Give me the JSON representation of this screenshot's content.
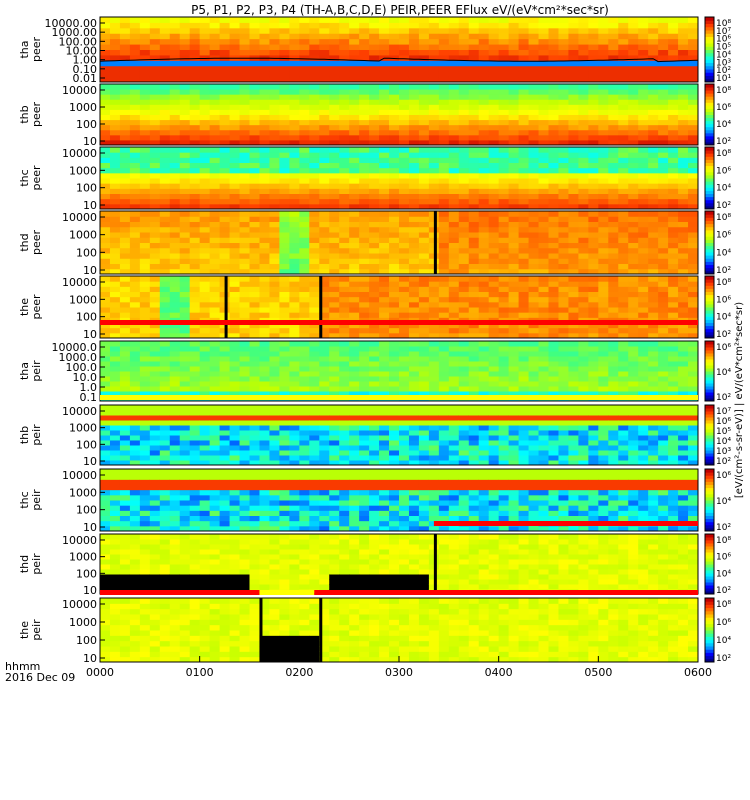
{
  "title": "P5, P1, P2, P3, P4 (TH-A,B,C,D,E) PEIR,PEER EFlux eV/(eV*cm²*sec*sr)",
  "chart_data": {
    "type": "heatmap",
    "x_axis": {
      "ticks": [
        "0000",
        "0100",
        "0200",
        "0300",
        "0400",
        "0500",
        "0600"
      ],
      "label_line1": "hhmm",
      "label_line2": "2016 Dec 09"
    },
    "colorbar_label": "[eV/(cm²-s-sr-eV)] | eV/(eV*cm²*sec*sr)",
    "panels": [
      {
        "name": "tha peer",
        "line1": "tha",
        "line2": "peer",
        "log_scale": true,
        "yticks": [
          "10000.00",
          "1000.00",
          "100.00",
          "10.00",
          "1.00",
          "0.10",
          "0.01"
        ],
        "cbar_ticks": [
          "10⁸",
          "10⁷",
          "10⁶",
          "10⁵",
          "10⁴",
          "10³",
          "10²",
          "10¹"
        ],
        "pattern": "esa_a"
      },
      {
        "name": "thb peer",
        "line1": "thb",
        "line2": "peer",
        "log_scale": true,
        "yticks": [
          "10000",
          "1000",
          "100",
          "10"
        ],
        "cbar_ticks": [
          "10⁸",
          "10⁶",
          "10⁴",
          "10²"
        ],
        "pattern": "esa_b"
      },
      {
        "name": "thc peer",
        "line1": "thc",
        "line2": "peer",
        "log_scale": true,
        "yticks": [
          "10000",
          "1000",
          "100",
          "10"
        ],
        "cbar_ticks": [
          "10⁸",
          "10⁶",
          "10⁴",
          "10²"
        ],
        "pattern": "esa_c"
      },
      {
        "name": "thd peer",
        "line1": "thd",
        "line2": "peer",
        "log_scale": true,
        "yticks": [
          "10000",
          "1000",
          "100",
          "10"
        ],
        "cbar_ticks": [
          "10⁸",
          "10⁶",
          "10⁴",
          "10²"
        ],
        "pattern": "esa_d",
        "gaps_hours": [
          3.35
        ]
      },
      {
        "name": "the peer",
        "line1": "the",
        "line2": "peer",
        "log_scale": true,
        "yticks": [
          "10000",
          "1000",
          "100",
          "10"
        ],
        "cbar_ticks": [
          "10⁸",
          "10⁶",
          "10⁴",
          "10²"
        ],
        "pattern": "esa_e",
        "gaps_hours": [
          1.25,
          2.2
        ]
      },
      {
        "name": "tha peir",
        "line1": "tha",
        "line2": "peir",
        "log_scale": true,
        "yticks": [
          "10000.0",
          "1000.0",
          "100.0",
          "10.0",
          "1.0",
          "0.1"
        ],
        "cbar_ticks": [
          "10⁶",
          "10⁴",
          "10²"
        ],
        "pattern": "sst_a"
      },
      {
        "name": "thb peir",
        "line1": "thb",
        "line2": "peir",
        "log_scale": true,
        "yticks": [
          "10000",
          "1000",
          "100",
          "10"
        ],
        "cbar_ticks": [
          "10⁷",
          "10⁶",
          "10⁵",
          "10⁴",
          "10³",
          "10²"
        ],
        "pattern": "sst_b"
      },
      {
        "name": "thc peir",
        "line1": "thc",
        "line2": "peir",
        "log_scale": true,
        "yticks": [
          "10000",
          "1000",
          "100",
          "10"
        ],
        "cbar_ticks": [
          "10⁶",
          "10⁴",
          "10²"
        ],
        "pattern": "sst_c"
      },
      {
        "name": "thd peir",
        "line1": "thd",
        "line2": "peir",
        "log_scale": true,
        "yticks": [
          "10000",
          "1000",
          "100",
          "10"
        ],
        "cbar_ticks": [
          "10⁸",
          "10⁶",
          "10⁴",
          "10²"
        ],
        "pattern": "sst_d",
        "gaps_hours": [
          3.35
        ]
      },
      {
        "name": "the peir",
        "line1": "the",
        "line2": "peir",
        "log_scale": true,
        "yticks": [
          "10000",
          "1000",
          "100",
          "10"
        ],
        "cbar_ticks": [
          "10⁸",
          "10⁶",
          "10⁴",
          "10²"
        ],
        "pattern": "sst_e",
        "gaps_hours": [
          1.6,
          2.2
        ]
      }
    ],
    "mode_bars": [
      {
        "after_panel": 5,
        "segments": [
          {
            "from_hour": 0.0,
            "to_hour": 6.0,
            "color": "#ff0000"
          }
        ]
      },
      {
        "after_panel": 6,
        "segments": [
          {
            "from_hour": 0.0,
            "to_hour": 6.0,
            "color": "#ffff00"
          }
        ]
      },
      {
        "after_panel": 8,
        "segments": [
          {
            "from_hour": 3.35,
            "to_hour": 6.0,
            "color": "#ff0000"
          }
        ]
      },
      {
        "after_panel": 9,
        "segments": [
          {
            "from_hour": 0.0,
            "to_hour": 1.6,
            "color": "#ff0000"
          },
          {
            "from_hour": 1.6,
            "to_hour": 2.15,
            "color": "#ffff00"
          },
          {
            "from_hour": 2.15,
            "to_hour": 6.0,
            "color": "#ff0000"
          }
        ]
      }
    ],
    "colormap": [
      "#000080",
      "#0000ff",
      "#00a0ff",
      "#00ffff",
      "#40ff80",
      "#c0ff00",
      "#ffff00",
      "#ffa000",
      "#ff4000",
      "#c00000"
    ]
  }
}
